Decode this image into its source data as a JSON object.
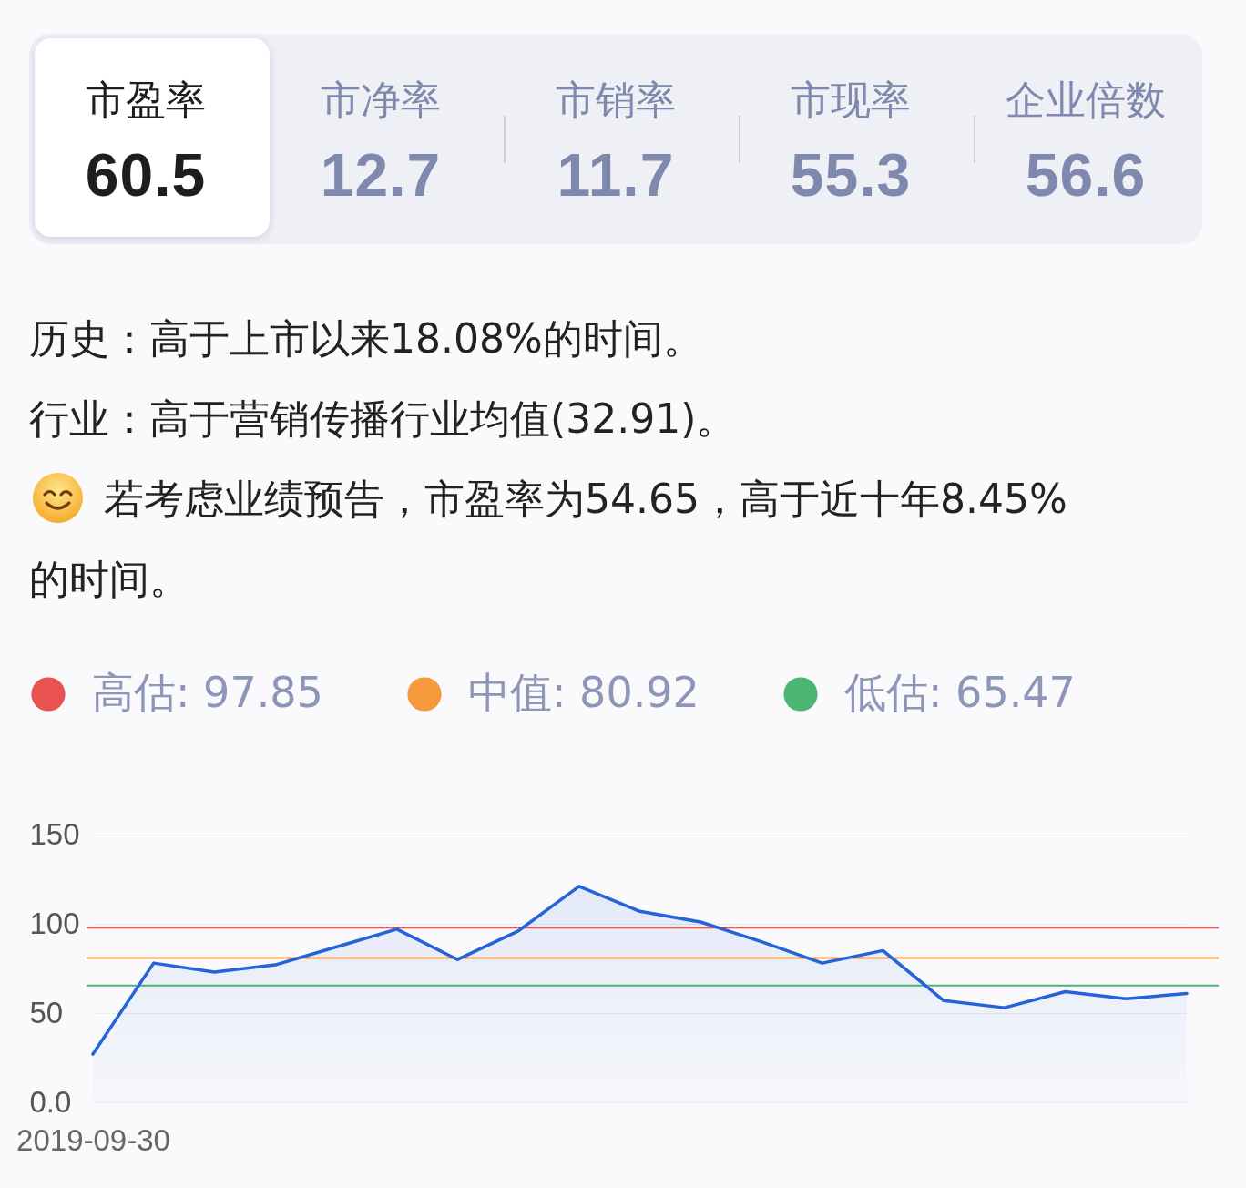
{
  "chart_data": [
    {
      "type": "other",
      "categories": [
        "市盈率",
        "市净率",
        "市销率",
        "市现率",
        "企业倍数"
      ],
      "values": [
        60.5,
        12.7,
        11.7,
        55.3,
        56.6
      ],
      "data_labels": true,
      "annotations": [
        "历史：高于上市以来18.08%的时间。",
        "行业：高于营销传播行业均值(32.91)。",
        "若考虑业绩预告，市盈率为54.65，高于近十年8.45%的时间。"
      ]
    },
    {
      "type": "area",
      "categories": [
        "2019-09-30",
        null,
        null,
        null,
        null,
        null,
        null,
        null,
        null,
        null,
        null,
        null,
        null,
        null,
        null,
        null,
        null,
        null,
        null
      ],
      "series": [
        {
          "color": "#2563d8",
          "values": [
            27,
            78,
            73,
            77,
            87,
            97,
            80,
            96,
            121,
            107,
            101,
            90,
            78,
            85,
            57,
            53,
            62,
            58,
            61
          ]
        }
      ],
      "ylim": [
        0,
        150
      ],
      "yticks": [
        {
          "value": 0,
          "label": "0.0"
        },
        50,
        100,
        150
      ],
      "grid": "y",
      "legend": "top left",
      "ref_lines": [
        {
          "axis": "y",
          "value": 97.85,
          "label": "高估: 97.85",
          "color": "#e8524f"
        },
        {
          "axis": "y",
          "value": 80.92,
          "label": "中值: 80.92",
          "color": "#f59a3c"
        },
        {
          "axis": "y",
          "value": 65.47,
          "label": "低估: 65.47",
          "color": "#4db574"
        }
      ]
    }
  ]
}
